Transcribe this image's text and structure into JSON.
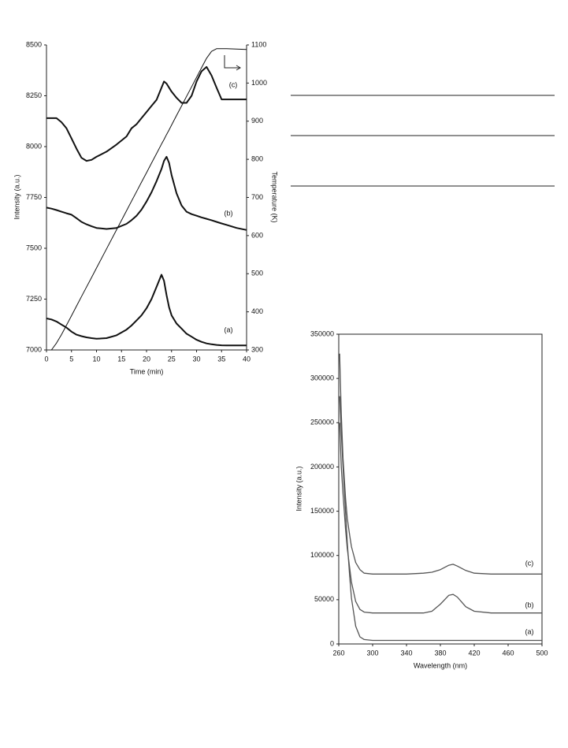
{
  "chart_data": [
    {
      "type": "line",
      "x_label": "Time (min)",
      "y_label": "Intensity (a.u.)",
      "y2_label": "Temperature (K)",
      "x": [
        0,
        1,
        2,
        3,
        4,
        5,
        6,
        7,
        8,
        9,
        10,
        12,
        14,
        16,
        17,
        18,
        19,
        20,
        21,
        22,
        23,
        23.5,
        24,
        24.5,
        25,
        26,
        27,
        28,
        29,
        30,
        31,
        32,
        33,
        34,
        35,
        36,
        38,
        40
      ],
      "xlim": [
        0,
        40
      ],
      "xticks": [
        0,
        5,
        10,
        15,
        20,
        25,
        30,
        35,
        40
      ],
      "ylim": [
        7000,
        8500
      ],
      "yticks": [
        7000,
        7250,
        7500,
        7750,
        8000,
        8250,
        8500
      ],
      "y2lim": [
        300,
        1100
      ],
      "y2ticks": [
        300,
        400,
        500,
        600,
        700,
        800,
        900,
        1000,
        1100
      ],
      "series": [
        {
          "name": "(a)",
          "color": "#111111",
          "values": [
            7155,
            7150,
            7140,
            7125,
            7110,
            7090,
            7075,
            7068,
            7062,
            7058,
            7055,
            7058,
            7072,
            7100,
            7120,
            7145,
            7170,
            7205,
            7250,
            7310,
            7370,
            7340,
            7270,
            7210,
            7170,
            7130,
            7105,
            7080,
            7065,
            7050,
            7040,
            7032,
            7028,
            7025,
            7023,
            7022,
            7022,
            7022
          ]
        },
        {
          "name": "(b)",
          "color": "#111111",
          "values": [
            7700,
            7695,
            7688,
            7680,
            7672,
            7665,
            7648,
            7630,
            7618,
            7608,
            7600,
            7595,
            7600,
            7620,
            7638,
            7660,
            7690,
            7730,
            7775,
            7830,
            7890,
            7930,
            7950,
            7920,
            7860,
            7770,
            7710,
            7680,
            7668,
            7660,
            7652,
            7645,
            7638,
            7630,
            7622,
            7615,
            7600,
            7590
          ]
        },
        {
          "name": "(c)",
          "color": "#111111",
          "values": [
            8140,
            8140,
            8140,
            8120,
            8090,
            8040,
            7990,
            7945,
            7930,
            7935,
            7950,
            7975,
            8010,
            8050,
            8090,
            8110,
            8140,
            8170,
            8200,
            8230,
            8290,
            8320,
            8310,
            8290,
            8270,
            8240,
            8215,
            8215,
            8250,
            8320,
            8370,
            8392,
            8350,
            8290,
            8232,
            8232,
            8232,
            8232
          ]
        },
        {
          "axis": "y2",
          "color": "#111111",
          "values": [
            null,
            300,
            318,
            340,
            365,
            390,
            415,
            440,
            465,
            490,
            515,
            565,
            615,
            665,
            690,
            715,
            740,
            765,
            790,
            815,
            840,
            852,
            865,
            877,
            890,
            915,
            940,
            965,
            990,
            1015,
            1040,
            1065,
            1083,
            1090,
            1090,
            1090,
            1089,
            1088
          ]
        }
      ]
    },
    {
      "type": "line",
      "x_label": "Wavelength (nm)",
      "y_label": "Intensity (a.u.)",
      "x": [
        261,
        263,
        265,
        268,
        270,
        273,
        275,
        280,
        285,
        290,
        300,
        340,
        360,
        370,
        380,
        390,
        395,
        400,
        410,
        420,
        440,
        460,
        500
      ],
      "xlim": [
        260,
        500
      ],
      "xticks": [
        260,
        300,
        340,
        380,
        420,
        460,
        500
      ],
      "ylim": [
        0,
        350000
      ],
      "yticks": [
        0,
        50000,
        100000,
        150000,
        200000,
        250000,
        300000,
        350000
      ],
      "series": [
        {
          "name": "(a)",
          "color": "#555555",
          "values": [
            280000,
            240000,
            200000,
            150000,
            115000,
            75000,
            52000,
            20000,
            8000,
            5000,
            4000,
            4000,
            4000,
            4000,
            4000,
            4000,
            4000,
            4000,
            4000,
            4000,
            4000,
            4000,
            4000
          ]
        },
        {
          "name": "(b)",
          "color": "#555555",
          "values": [
            250000,
            200000,
            170000,
            130000,
            108000,
            85000,
            70000,
            48000,
            39000,
            36000,
            35000,
            35000,
            35000,
            37000,
            45000,
            55000,
            56000,
            53000,
            42000,
            37000,
            35000,
            35000,
            35000
          ]
        },
        {
          "name": "(c)",
          "color": "#555555",
          "values": [
            328000,
            260000,
            210000,
            165000,
            142000,
            122000,
            110000,
            92000,
            84000,
            80000,
            79000,
            79000,
            80000,
            81000,
            84000,
            89000,
            90000,
            88000,
            83000,
            80000,
            79000,
            79000,
            79000
          ]
        }
      ]
    }
  ]
}
